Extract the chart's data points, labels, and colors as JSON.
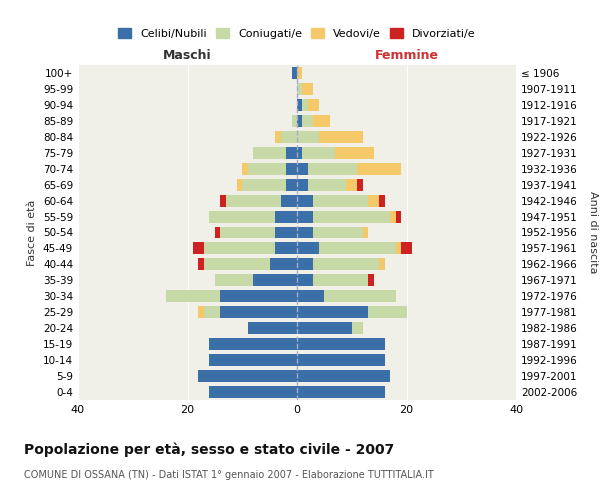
{
  "age_groups": [
    "100+",
    "95-99",
    "90-94",
    "85-89",
    "80-84",
    "75-79",
    "70-74",
    "65-69",
    "60-64",
    "55-59",
    "50-54",
    "45-49",
    "40-44",
    "35-39",
    "30-34",
    "25-29",
    "20-24",
    "15-19",
    "10-14",
    "5-9",
    "0-4"
  ],
  "birth_years": [
    "≤ 1906",
    "1907-1911",
    "1912-1916",
    "1917-1921",
    "1922-1926",
    "1927-1931",
    "1932-1936",
    "1937-1941",
    "1942-1946",
    "1947-1951",
    "1952-1956",
    "1957-1961",
    "1962-1966",
    "1967-1971",
    "1972-1976",
    "1977-1981",
    "1982-1986",
    "1987-1991",
    "1992-1996",
    "1997-2001",
    "2002-2006"
  ],
  "maschi": {
    "celibe": [
      1,
      0,
      0,
      0,
      0,
      2,
      2,
      2,
      3,
      4,
      4,
      4,
      5,
      8,
      14,
      14,
      9,
      16,
      16,
      18,
      16
    ],
    "coniugato": [
      0,
      0,
      0,
      1,
      3,
      6,
      7,
      8,
      10,
      12,
      10,
      13,
      12,
      7,
      10,
      3,
      0,
      0,
      0,
      0,
      0
    ],
    "vedovo": [
      0,
      0,
      0,
      0,
      1,
      0,
      1,
      1,
      0,
      0,
      0,
      0,
      0,
      0,
      0,
      1,
      0,
      0,
      0,
      0,
      0
    ],
    "divorziato": [
      0,
      0,
      0,
      0,
      0,
      0,
      0,
      0,
      1,
      0,
      1,
      2,
      1,
      0,
      0,
      0,
      0,
      0,
      0,
      0,
      0
    ]
  },
  "femmine": {
    "nubile": [
      0,
      0,
      1,
      1,
      0,
      1,
      2,
      2,
      3,
      3,
      3,
      4,
      3,
      3,
      5,
      13,
      10,
      16,
      16,
      17,
      16
    ],
    "coniugata": [
      0,
      1,
      1,
      2,
      4,
      6,
      9,
      7,
      10,
      14,
      9,
      14,
      12,
      10,
      13,
      7,
      2,
      0,
      0,
      0,
      0
    ],
    "vedova": [
      1,
      2,
      2,
      3,
      8,
      7,
      8,
      2,
      2,
      1,
      1,
      1,
      1,
      0,
      0,
      0,
      0,
      0,
      0,
      0,
      0
    ],
    "divorziata": [
      0,
      0,
      0,
      0,
      0,
      0,
      0,
      1,
      1,
      1,
      0,
      2,
      0,
      1,
      0,
      0,
      0,
      0,
      0,
      0,
      0
    ]
  },
  "colors": {
    "celibe": "#3a6fa8",
    "coniugato": "#c8d9a8",
    "vedovo": "#f5c96a",
    "divorziato": "#cc2222"
  },
  "xlim": 40,
  "title": "Popolazione per età, sesso e stato civile - 2007",
  "subtitle": "COMUNE DI OSSANA (TN) - Dati ISTAT 1° gennaio 2007 - Elaborazione TUTTITALIA.IT",
  "ylabel_left": "Fasce di età",
  "ylabel_right": "Anni di nascita",
  "xlabel_maschi": "Maschi",
  "xlabel_femmine": "Femmine",
  "bg_color": "#f0f0e8",
  "legend_labels": [
    "Celibi/Nubili",
    "Coniugati/e",
    "Vedovi/e",
    "Divorziati/e"
  ]
}
